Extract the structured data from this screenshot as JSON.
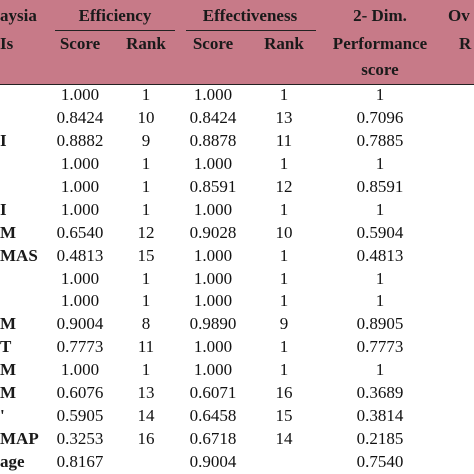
{
  "header": {
    "row1": [
      "aysia",
      "Efficiency",
      "Effectiveness",
      "2- Dim.",
      "Ov"
    ],
    "row2": [
      "Is",
      "Score",
      "Rank",
      "Score",
      "Rank",
      "Performance",
      "R"
    ],
    "row3": "score"
  },
  "table": {
    "rows": [
      [
        null,
        "1.000",
        "1",
        "1.000",
        "1",
        "1"
      ],
      [
        null,
        "0.8424",
        "10",
        "0.8424",
        "13",
        "0.7096"
      ],
      [
        "I",
        "0.8882",
        "9",
        "0.8878",
        "11",
        "0.7885"
      ],
      [
        null,
        "1.000",
        "1",
        "1.000",
        "1",
        "1"
      ],
      [
        null,
        "1.000",
        "1",
        "0.8591",
        "12",
        "0.8591"
      ],
      [
        "I",
        "1.000",
        "1",
        "1.000",
        "1",
        "1"
      ],
      [
        "M",
        "0.6540",
        "12",
        "0.9028",
        "10",
        "0.5904"
      ],
      [
        "MAS",
        "0.4813",
        "15",
        "1.000",
        "1",
        "0.4813"
      ],
      [
        null,
        "1.000",
        "1",
        "1.000",
        "1",
        "1"
      ],
      [
        null,
        "1.000",
        "1",
        "1.000",
        "1",
        "1"
      ],
      [
        "M",
        "0.9004",
        "8",
        "0.9890",
        "9",
        "0.8905"
      ],
      [
        "T",
        "0.7773",
        "11",
        "1.000",
        "1",
        "0.7773"
      ],
      [
        "M",
        "1.000",
        "1",
        "1.000",
        "1",
        "1"
      ],
      [
        "M",
        "0.6076",
        "13",
        "0.6071",
        "16",
        "0.3689"
      ],
      [
        "'",
        "0.5905",
        "14",
        "0.6458",
        "15",
        "0.3814"
      ],
      [
        "MAP",
        "0.3253",
        "16",
        "0.6718",
        "14",
        "0.2185"
      ],
      [
        "age",
        "0.8167",
        null,
        "0.9004",
        null,
        "0.7540"
      ]
    ]
  }
}
